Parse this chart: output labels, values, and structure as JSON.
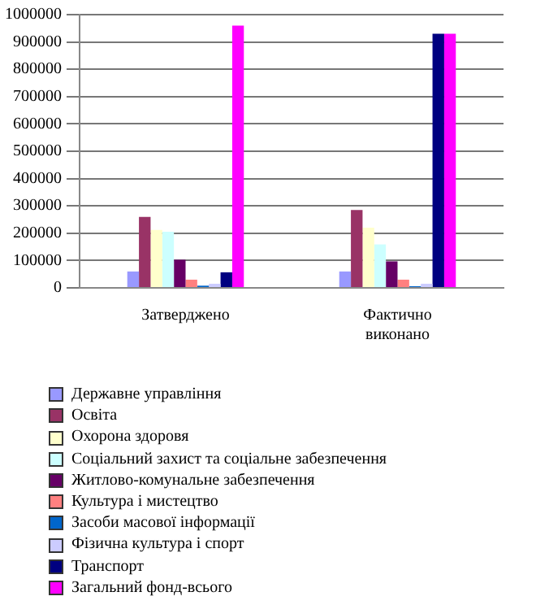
{
  "chart_data": {
    "type": "bar",
    "categories": [
      "Затверджено",
      "Фактично виконано"
    ],
    "series": [
      {
        "name": "Державне управління",
        "color": "#9999ff",
        "values": [
          60000,
          60000
        ]
      },
      {
        "name": "Освіта",
        "color": "#993366",
        "values": [
          260000,
          285000
        ]
      },
      {
        "name": "Охорона здоровя",
        "color": "#ffffcc",
        "values": [
          212000,
          220000
        ]
      },
      {
        "name": "Соціальний захист та соціальне забезпечення",
        "color": "#ccffff",
        "values": [
          205000,
          159000
        ]
      },
      {
        "name": "Житлово-комунальне забезпечення",
        "color": "#660066",
        "values": [
          103000,
          97000
        ]
      },
      {
        "name": "Культура і мистецтво",
        "color": "#ff8080",
        "values": [
          30000,
          30000
        ]
      },
      {
        "name": "Засоби масової інформації",
        "color": "#0066cc",
        "values": [
          8000,
          6000
        ]
      },
      {
        "name": "Фізична культура і спорт",
        "color": "#ccccff",
        "values": [
          15000,
          15000
        ]
      },
      {
        "name": "Транспорт",
        "color": "#000080",
        "values": [
          57000,
          930000
        ]
      },
      {
        "name": "Загальний фонд-всього",
        "color": "#ff00ff",
        "values": [
          960000,
          930000
        ]
      }
    ],
    "ylim": [
      0,
      1000000
    ],
    "yticks": [
      0,
      100000,
      200000,
      300000,
      400000,
      500000,
      600000,
      700000,
      800000,
      900000,
      1000000
    ],
    "grid": "y",
    "legend": "bottom"
  }
}
